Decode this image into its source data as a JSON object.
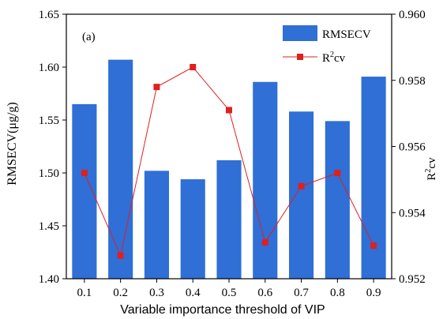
{
  "chart_data": {
    "type": "bar",
    "panel_label": "(a)",
    "xlabel": "Variable importance threshold of VIP",
    "categories": [
      "0.1",
      "0.2",
      "0.3",
      "0.4",
      "0.5",
      "0.6",
      "0.7",
      "0.8",
      "0.9"
    ],
    "left_axis": {
      "label": "RMSECV(μg/g)",
      "ylim": [
        1.4,
        1.65
      ],
      "ticks": [
        "1.40",
        "1.45",
        "1.50",
        "1.55",
        "1.60",
        "1.65"
      ]
    },
    "right_axis": {
      "label_base": "R",
      "label_sup": "2",
      "label_tail": "cv",
      "ylim": [
        0.952,
        0.96
      ],
      "ticks": [
        "0.952",
        "0.954",
        "0.956",
        "0.958",
        "0.960"
      ]
    },
    "series": [
      {
        "name": "RMSECV",
        "type": "bar",
        "axis": "left",
        "color": "#2f6fd6",
        "values": [
          1.565,
          1.607,
          1.502,
          1.494,
          1.512,
          1.586,
          1.558,
          1.549,
          1.591
        ]
      },
      {
        "name_base": "R",
        "name_sup": "2",
        "name_tail": "cv",
        "type": "line",
        "marker": "square",
        "axis": "right",
        "color": "#e01f1f",
        "values": [
          0.9552,
          0.9527,
          0.9578,
          0.9584,
          0.9571,
          0.9531,
          0.9548,
          0.9552,
          0.953
        ]
      }
    ],
    "legend_position": "top-right",
    "grid": false
  }
}
